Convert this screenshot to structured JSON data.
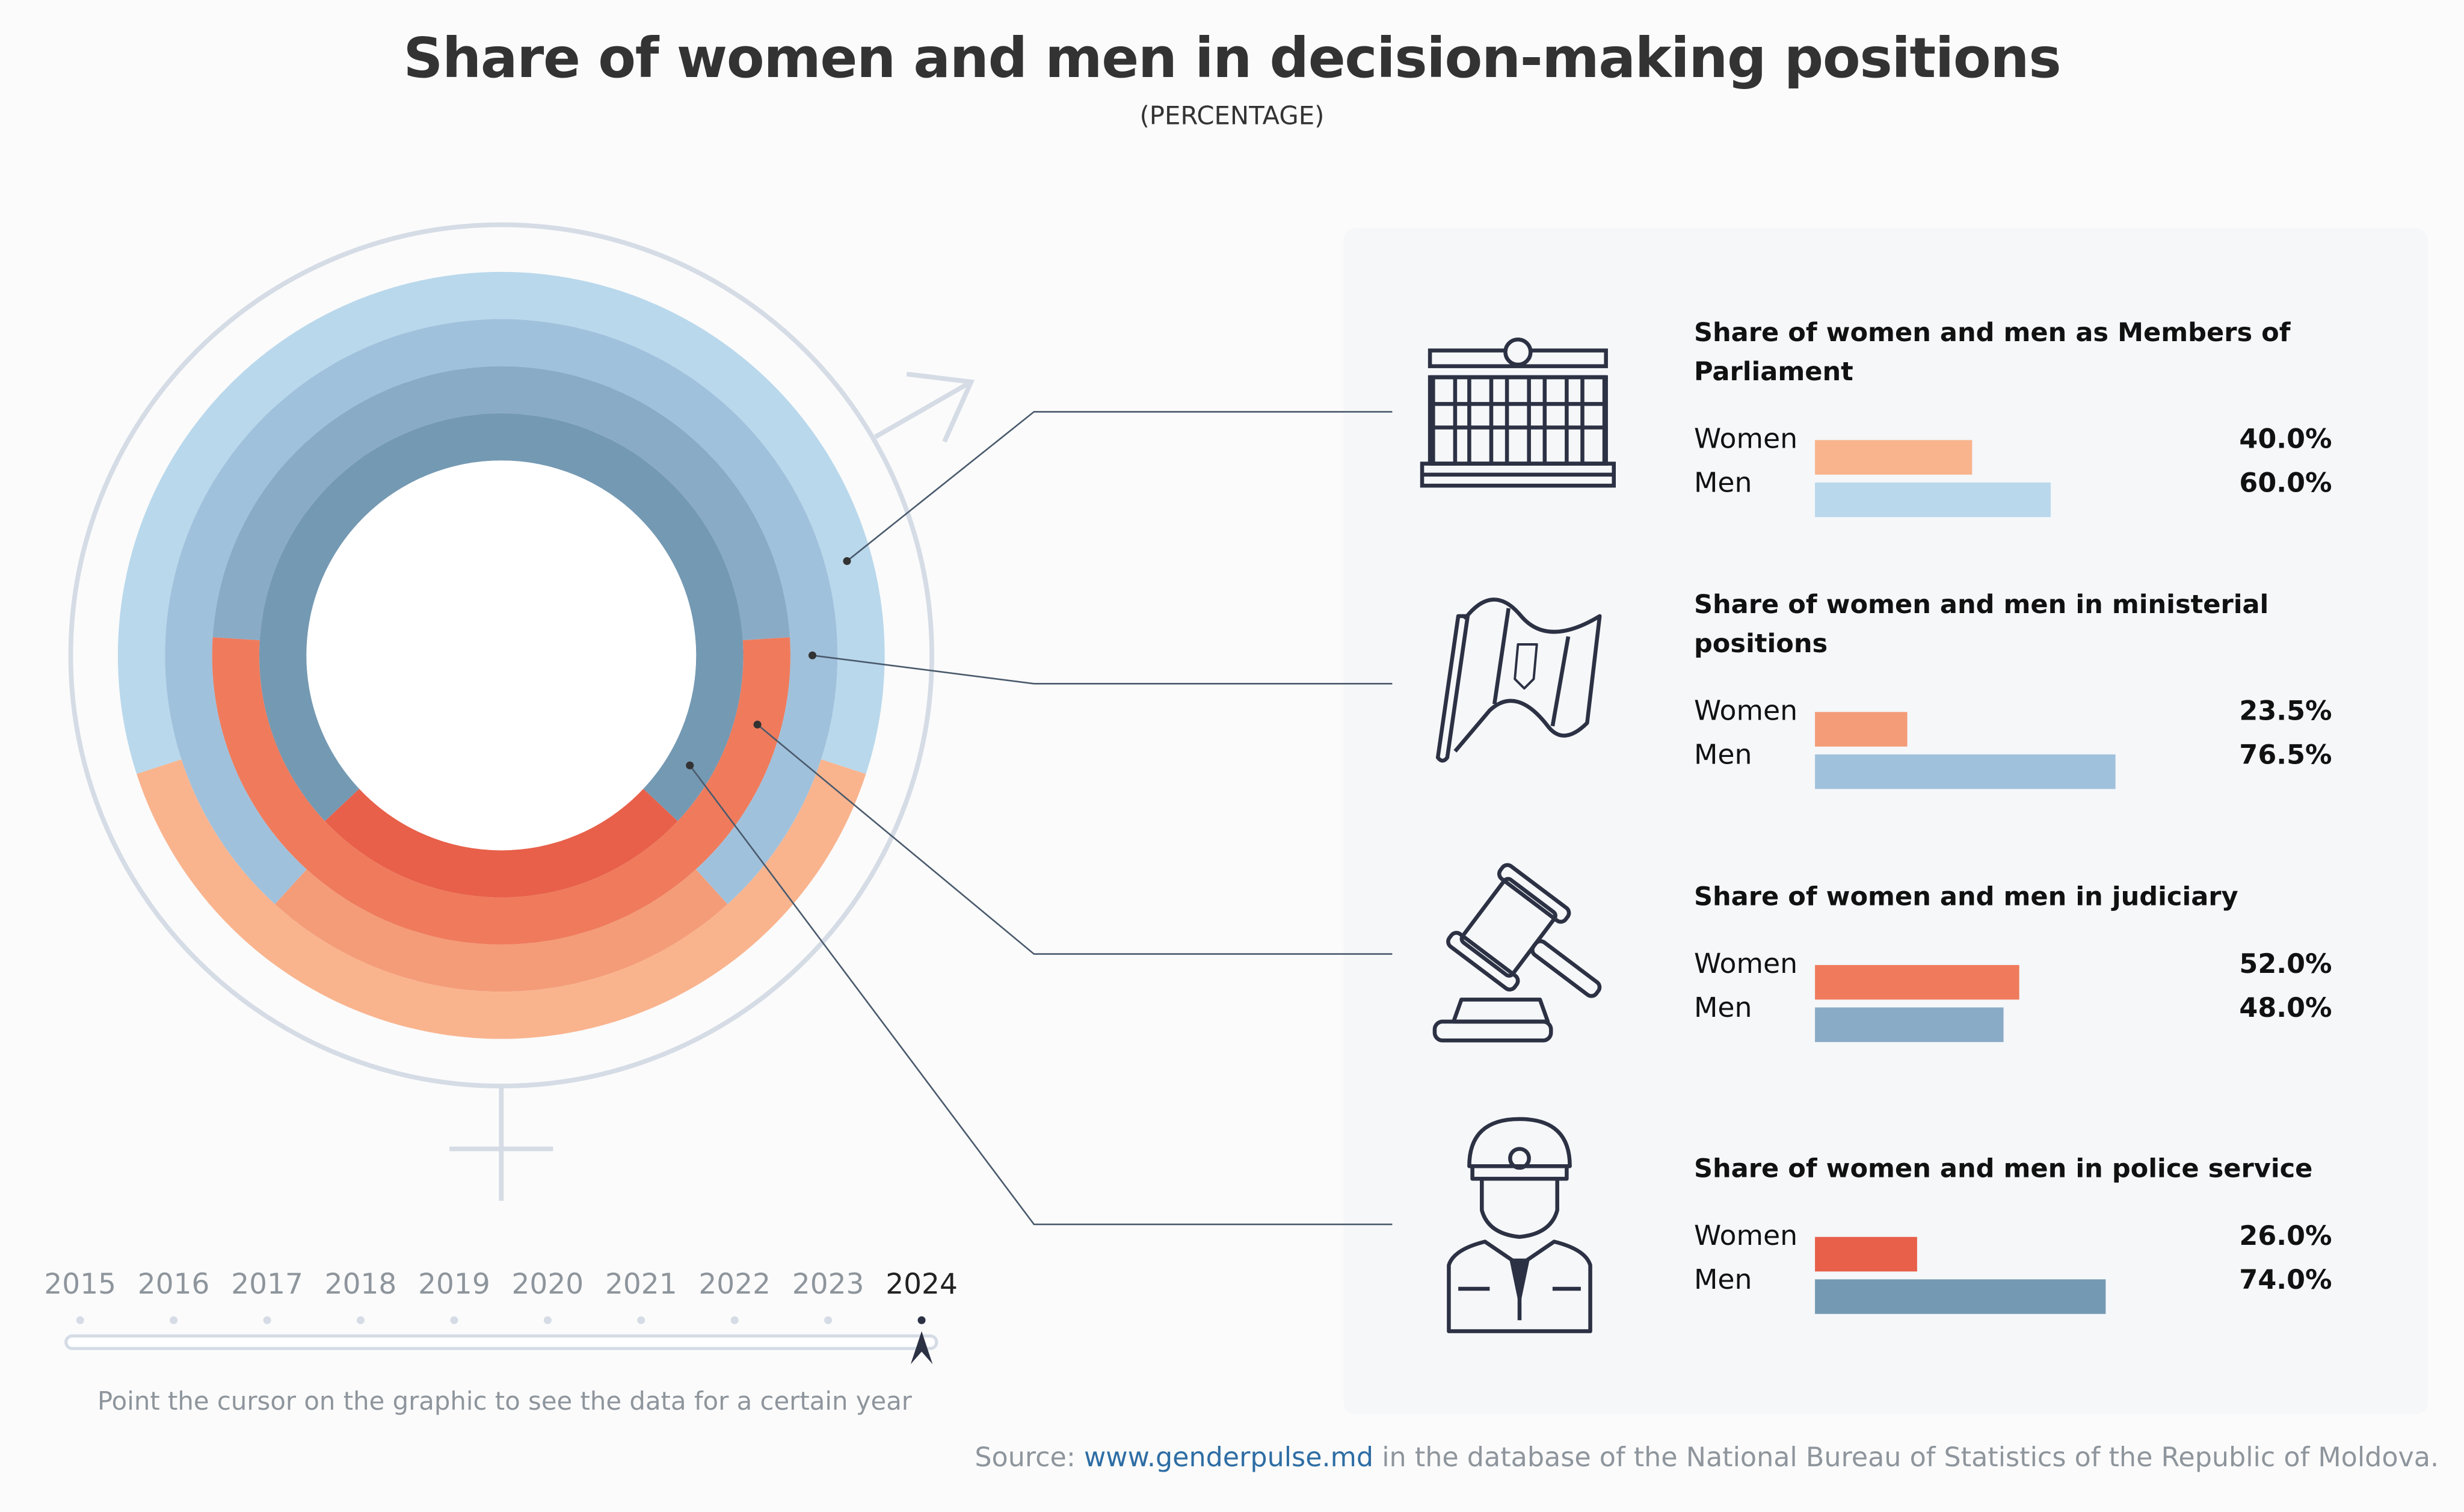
{
  "title": "Share of women and men in decision-making positions",
  "subtitle": "(PERCENTAGE)",
  "colors": {
    "panel_bg": "#f5f7f9",
    "icon_stroke": "#2c3144",
    "connector": "#4a5a6c"
  },
  "chart_data": {
    "type": "pie",
    "variant": "concentric donut rings + horizontal bars",
    "year": "2024",
    "categories": [
      {
        "title": "Share of women and men as Members of Parliament",
        "icon": "parliament-building-icon",
        "women": 40.0,
        "men": 60.0,
        "women_label": "40.0%",
        "men_label": "60.0%",
        "women_color": "#f9b48e",
        "men_color": "#b9d8ec"
      },
      {
        "title": "Share of women and men in ministerial positions",
        "icon": "flag-icon",
        "women": 23.5,
        "men": 76.5,
        "women_label": "23.5%",
        "men_label": "76.5%",
        "women_color": "#f49c78",
        "men_color": "#a0c1dc"
      },
      {
        "title": "Share of women and men in judiciary",
        "icon": "gavel-icon",
        "women": 52.0,
        "men": 48.0,
        "women_label": "52.0%",
        "men_label": "48.0%",
        "women_color": "#ef7b5c",
        "men_color": "#8aabc6"
      },
      {
        "title": "Share of women and men in police service",
        "icon": "police-officer-icon",
        "women": 26.0,
        "men": 74.0,
        "women_label": "26.0%",
        "men_label": "74.0%",
        "women_color": "#e8604a",
        "men_color": "#7499b3"
      }
    ],
    "series_names": {
      "women": "Women",
      "men": "Men"
    }
  },
  "timeline": {
    "years": [
      "2015",
      "2016",
      "2017",
      "2018",
      "2019",
      "2020",
      "2021",
      "2022",
      "2023",
      "2024"
    ],
    "selected": "2024"
  },
  "hint": "Point the cursor on the graphic to see the data for a certain year",
  "source": {
    "prefix": "Source: ",
    "link": "www.genderpulse.md",
    "suffix": " in the database of the National Bureau of Statistics of the Republic of Moldova."
  }
}
